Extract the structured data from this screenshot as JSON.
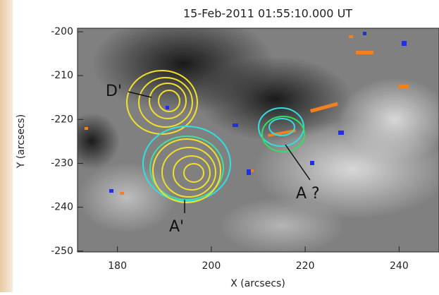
{
  "chart_data": {
    "type": "image",
    "title": "15-Feb-2011 01:55:10.000 UT",
    "xlabel": "X (arcsecs)",
    "ylabel": "Y (arcsecs)",
    "xlim": [
      171.5,
      248.5
    ],
    "ylim": [
      -250.2,
      -199.2
    ],
    "xticks": [
      180,
      200,
      220,
      240
    ],
    "yticks": [
      -200,
      -210,
      -220,
      -230,
      -240,
      -250
    ],
    "annotations": [
      "D'",
      "A'",
      "A ?"
    ]
  }
}
